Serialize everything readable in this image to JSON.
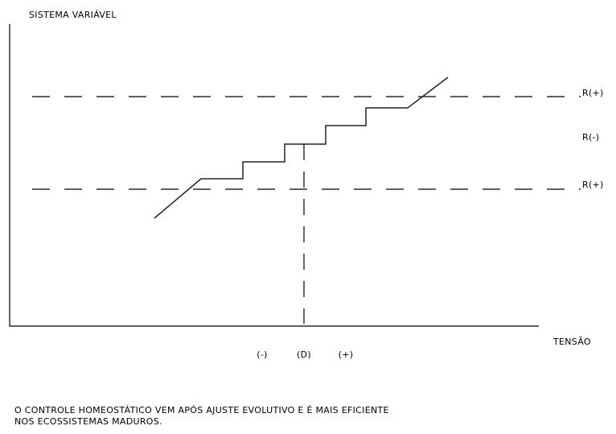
{
  "axes": {
    "y_label": "SISTEMA VARIÁVEL",
    "x_label": "TENSÃO"
  },
  "levels": [
    "R(+)",
    "R(-)",
    "R(+)"
  ],
  "x_marks": [
    "(-)",
    "(D)",
    "(+)"
  ],
  "caption": [
    "O CONTROLE HOMEOSTÁTICO VEM APÓS AJUSTE EVOLUTIVO E É MAIS EFICIENTE",
    "NOS ECOSSISTEMAS MADUROS."
  ]
}
